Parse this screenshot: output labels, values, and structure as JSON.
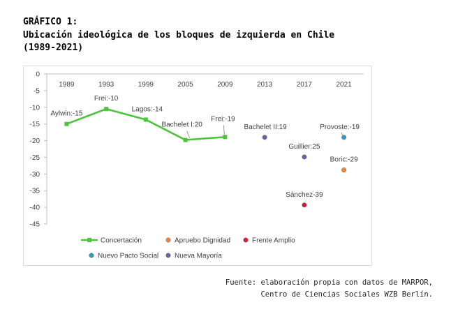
{
  "heading": {
    "label": "GRÁFICO 1:",
    "title_line1": "Ubicación ideológica de los bloques de izquierda en Chile",
    "title_line2": "(1989-2021)"
  },
  "source": {
    "line1": "Fuente: elaboración propia con datos de MARPOR,",
    "line2": "Centro de Ciencias Sociales WZB Berlín."
  },
  "chart_data": {
    "type": "line",
    "categories": [
      "1989",
      "1993",
      "1999",
      "2005",
      "2009",
      "2013",
      "2017",
      "2021"
    ],
    "ylim": [
      -45,
      0
    ],
    "yticks": [
      0,
      -5,
      -10,
      -15,
      -20,
      -25,
      -30,
      -35,
      -40,
      -45
    ],
    "grid": false,
    "legend_position": "bottom",
    "series": [
      {
        "name": "Concertación",
        "color": "#4ec33d",
        "kind": "line",
        "points": [
          {
            "x": "1989",
            "y": -15,
            "label": "Aylwin:-15"
          },
          {
            "x": "1993",
            "y": -10.5,
            "label": "Frei:-10"
          },
          {
            "x": "1999",
            "y": -13.7,
            "label": "Lagos:-14"
          },
          {
            "x": "2005",
            "y": -19.8,
            "label": "Bachelet I:20"
          },
          {
            "x": "2009",
            "y": -18.9,
            "label": "Frei:-19"
          }
        ]
      },
      {
        "name": "Apruebo Dignidad",
        "color": "#f0883a",
        "kind": "point",
        "points": [
          {
            "x": "2021",
            "y": -28.8,
            "label": "Boric:-29"
          }
        ]
      },
      {
        "name": "Frente Amplio",
        "color": "#e0182a",
        "kind": "point",
        "points": [
          {
            "x": "2017",
            "y": -39.3,
            "label": "Sánchez-39"
          }
        ]
      },
      {
        "name": "Nuevo Pacto Social",
        "color": "#2a9fc0",
        "kind": "point",
        "points": [
          {
            "x": "2021",
            "y": -19,
            "label": "Provoste:-19"
          }
        ]
      },
      {
        "name": "Nueva Mayoría",
        "color": "#6e5fa6",
        "kind": "point",
        "points": [
          {
            "x": "2013",
            "y": -19,
            "label": "Bachelet II:19"
          },
          {
            "x": "2017",
            "y": -24.9,
            "label": "Guillier:25"
          }
        ]
      }
    ]
  }
}
